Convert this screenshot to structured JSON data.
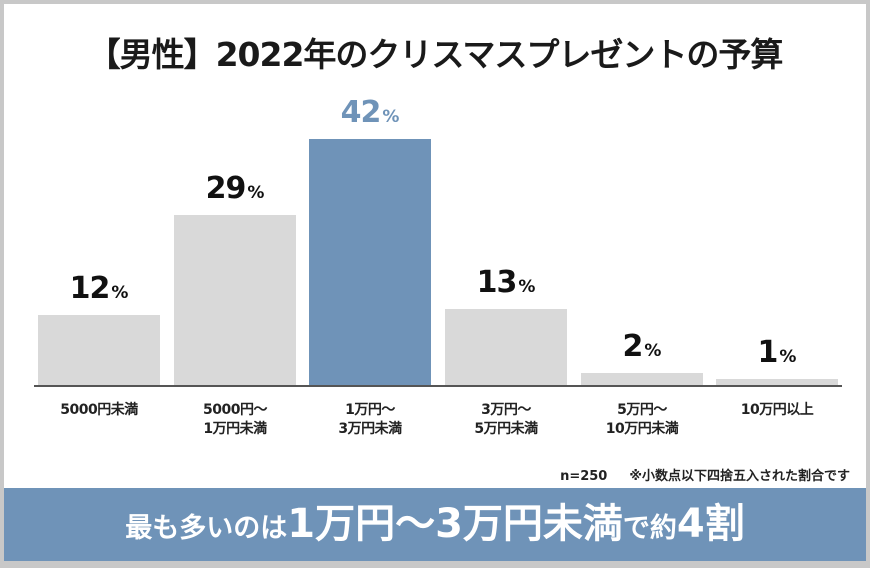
{
  "title": "【男性】2022年のクリスマスプレゼントの予算",
  "chart_data": {
    "type": "bar",
    "title": "【男性】2022年のクリスマスプレゼントの予算",
    "categories": [
      "5000円未満",
      "5000円〜\n1万円未満",
      "1万円〜\n3万円未満",
      "3万円〜\n5万円未満",
      "5万円〜\n10万円未満",
      "10万円以上"
    ],
    "values": [
      12,
      29,
      42,
      13,
      2,
      1
    ],
    "unit": "%",
    "highlight_index": 2,
    "xlabel": "",
    "ylabel": "",
    "ylim": [
      0,
      45
    ],
    "grid": false,
    "legend": null,
    "colors": {
      "default": "#d9d9d9",
      "highlight": "#6f93b8"
    }
  },
  "bars": [
    {
      "category": "5000円未満",
      "value": "12",
      "pct": "%"
    },
    {
      "category": "5000円〜\n1万円未満",
      "value": "29",
      "pct": "%"
    },
    {
      "category": "1万円〜\n3万円未満",
      "value": "42",
      "pct": "%"
    },
    {
      "category": "3万円〜\n5万円未満",
      "value": "13",
      "pct": "%"
    },
    {
      "category": "5万円〜\n10万円未満",
      "value": "2",
      "pct": "%"
    },
    {
      "category": "10万円以上",
      "value": "1",
      "pct": "%"
    }
  ],
  "note": {
    "sample": "n=250",
    "rounding": "※小数点以下四捨五入された割合です"
  },
  "banner": {
    "part1": "最も多いのは",
    "part2": "1万円〜3万円未満",
    "part3": "で約",
    "part4": "4割"
  }
}
